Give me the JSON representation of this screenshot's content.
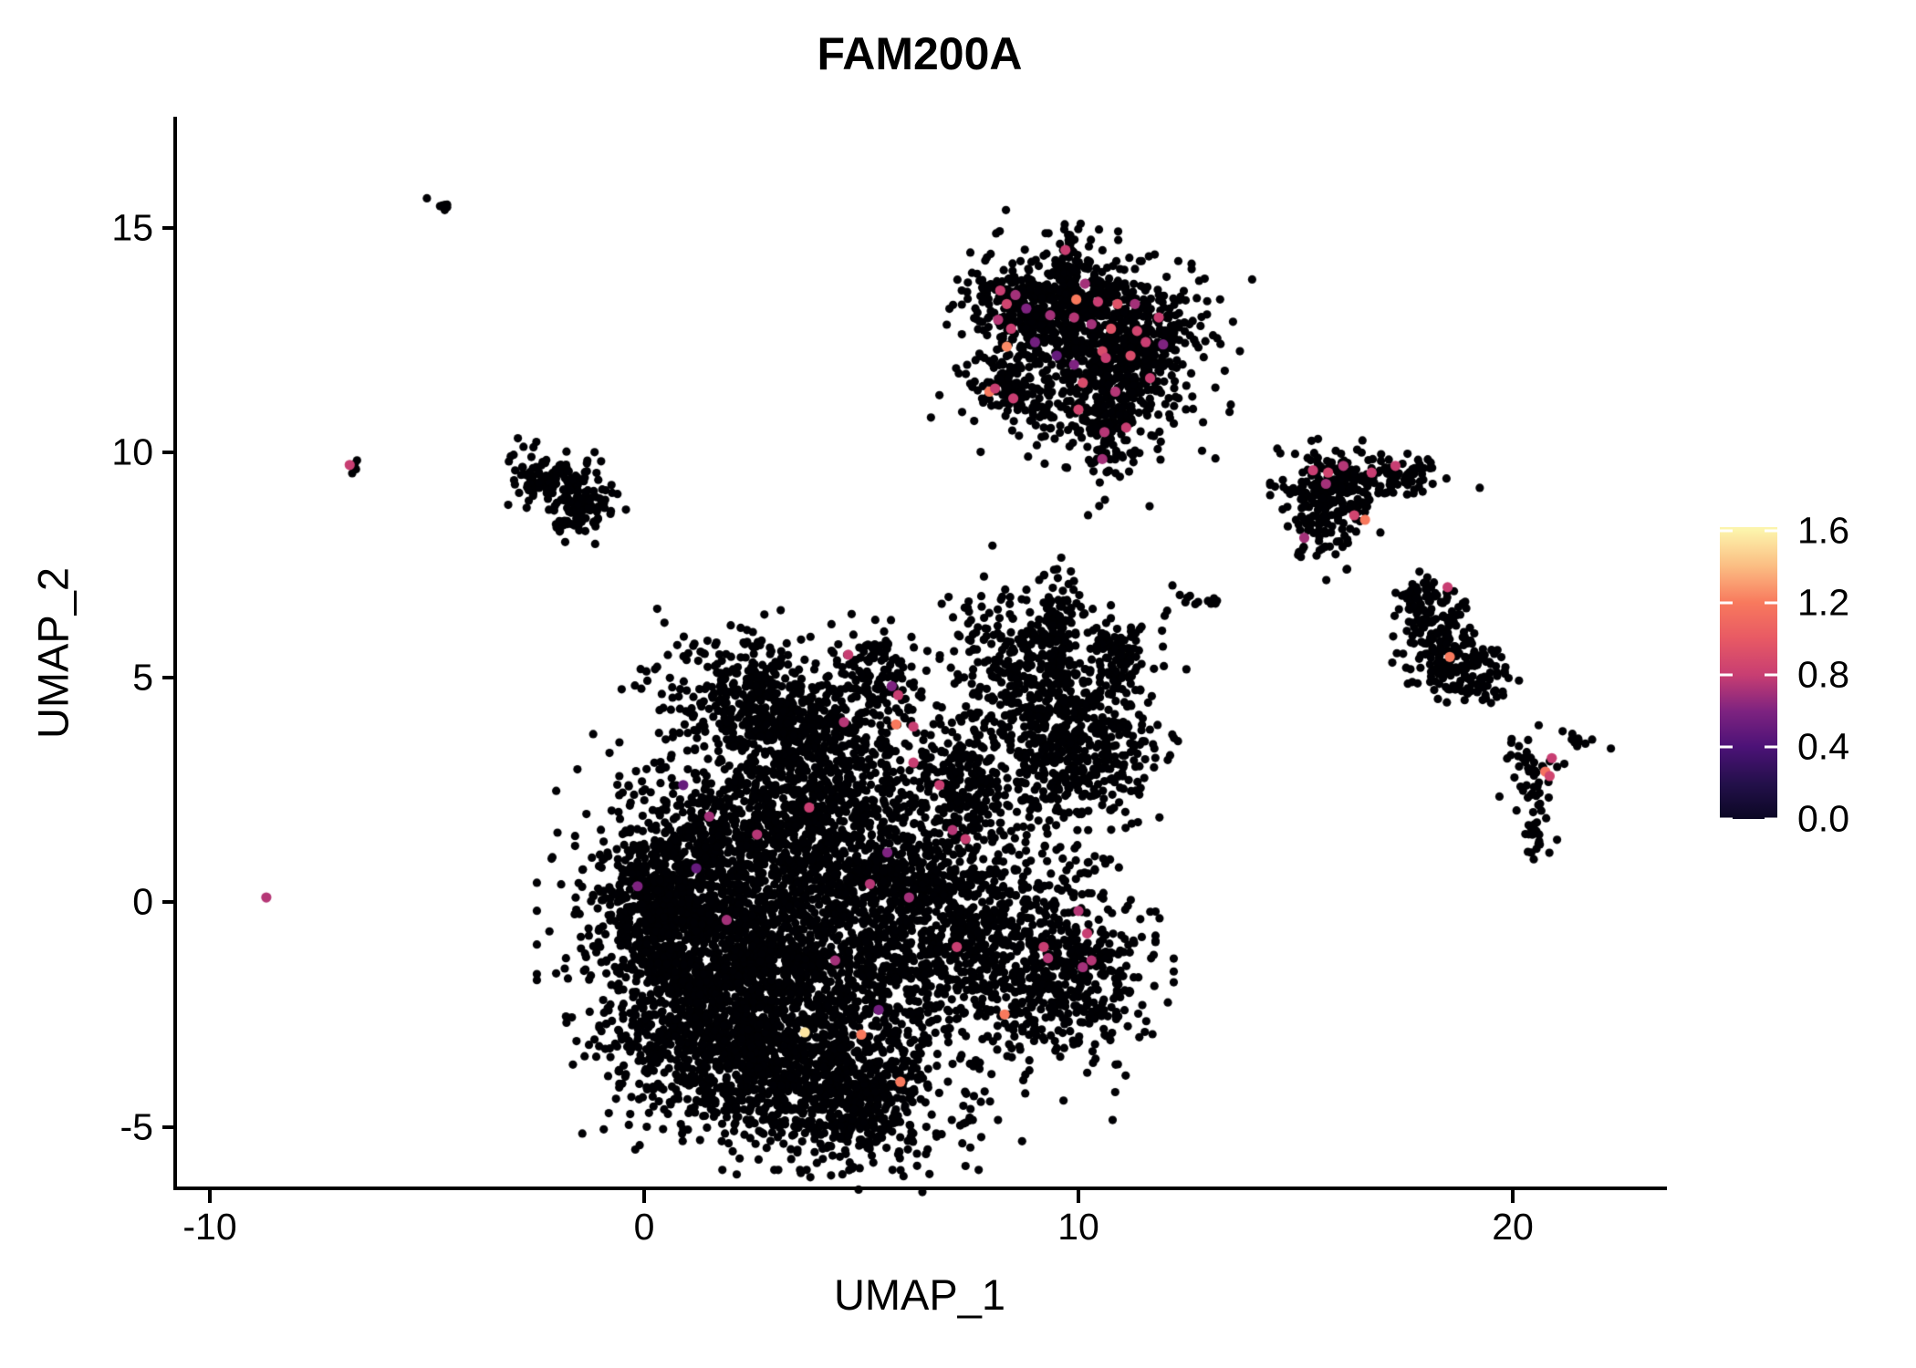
{
  "title": "FAM200A",
  "axes": {
    "x": {
      "label": "UMAP_1",
      "tick_values": [
        -10,
        0,
        10,
        20
      ],
      "tick_labels": [
        "-10",
        "0",
        "10",
        "20"
      ],
      "range": [
        -10.8,
        23.5
      ]
    },
    "y": {
      "label": "UMAP_2",
      "tick_values": [
        -5,
        0,
        5,
        10,
        15
      ],
      "tick_labels": [
        "-5",
        "0",
        "5",
        "10",
        "15"
      ],
      "range": [
        -6.4,
        17.4
      ]
    }
  },
  "legend": {
    "tick_values": [
      1.6,
      1.2,
      0.8,
      0.4,
      0.0
    ],
    "tick_labels": [
      "1.6",
      "1.2",
      "0.8",
      "0.4",
      "0.0"
    ],
    "vmax": 1.62,
    "gradient_stops": [
      [
        0.0,
        "#0B0724"
      ],
      [
        0.12,
        "#23104A"
      ],
      [
        0.247,
        "#4C1277"
      ],
      [
        0.37,
        "#7E2380"
      ],
      [
        0.494,
        "#C83E72"
      ],
      [
        0.62,
        "#E85A64"
      ],
      [
        0.741,
        "#F8795D"
      ],
      [
        0.87,
        "#FBBF84"
      ],
      [
        0.99,
        "#FCF4AC"
      ]
    ]
  },
  "chart_data": {
    "type": "scatter",
    "title": "FAM200A",
    "xlabel": "UMAP_1",
    "ylabel": "UMAP_2",
    "grid": false,
    "legend_position": "right",
    "background_point_color": "#000004",
    "point_radius_px": 4.6,
    "colored_point_radius_px": 5.6,
    "seed": 42,
    "clusters_note": "each cluster = [center_x, center_y, sigma_x, sigma_y, rotation_deg, n_points] in UMAP data coordinates; points have expression 0 (black)",
    "clusters": [
      [
        3.2,
        -1.1,
        2.1,
        1.8,
        0,
        2400
      ],
      [
        0.9,
        -1.1,
        1.0,
        1.5,
        0,
        650
      ],
      [
        0.3,
        -0.2,
        0.6,
        0.9,
        0,
        250
      ],
      [
        5.0,
        -4.4,
        1.0,
        0.75,
        -15,
        400
      ],
      [
        3.3,
        -3.9,
        1.2,
        0.8,
        0,
        350
      ],
      [
        2.0,
        -3.1,
        1.2,
        0.8,
        10,
        300
      ],
      [
        2.6,
        4.4,
        1.2,
        0.8,
        -15,
        450
      ],
      [
        3.9,
        3.3,
        1.2,
        0.9,
        0,
        420
      ],
      [
        5.3,
        4.9,
        0.5,
        0.6,
        0,
        120
      ],
      [
        3.0,
        1.6,
        1.7,
        0.8,
        0,
        520
      ],
      [
        6.3,
        0.6,
        0.8,
        1.3,
        0,
        380
      ],
      [
        7.4,
        2.6,
        0.5,
        0.5,
        0,
        150
      ],
      [
        9.2,
        4.7,
        1.2,
        0.95,
        -30,
        520
      ],
      [
        9.9,
        3.2,
        0.9,
        0.7,
        0,
        300
      ],
      [
        8.4,
        -0.8,
        1.25,
        1.5,
        0,
        650
      ],
      [
        9.9,
        -1.7,
        0.85,
        0.8,
        0,
        260
      ],
      [
        9.5,
        6.1,
        0.22,
        0.65,
        0,
        80
      ],
      [
        11.0,
        5.5,
        0.35,
        0.5,
        0,
        80
      ],
      [
        10.3,
        12.3,
        1.25,
        1.0,
        -10,
        780
      ],
      [
        8.6,
        13.3,
        0.55,
        0.42,
        -25,
        170
      ],
      [
        9.9,
        13.5,
        0.6,
        0.4,
        0,
        180
      ],
      [
        10.6,
        10.7,
        0.33,
        0.75,
        8,
        130
      ],
      [
        8.35,
        11.45,
        0.45,
        0.22,
        -35,
        60
      ],
      [
        9.75,
        14.45,
        0.1,
        0.32,
        10,
        22
      ],
      [
        11.45,
        12.5,
        0.5,
        0.65,
        0,
        180
      ],
      [
        -1.95,
        9.35,
        0.5,
        0.33,
        -20,
        110
      ],
      [
        -1.45,
        8.65,
        0.42,
        0.28,
        20,
        75
      ],
      [
        -2.55,
        9.35,
        0.22,
        0.16,
        0,
        18
      ],
      [
        15.9,
        9.2,
        0.55,
        0.48,
        0,
        190
      ],
      [
        17.2,
        9.4,
        0.75,
        0.22,
        8,
        85
      ],
      [
        15.6,
        8.4,
        0.4,
        0.45,
        30,
        55
      ],
      [
        15.1,
        7.8,
        0.1,
        0.1,
        0,
        4
      ],
      [
        17.9,
        6.75,
        0.3,
        0.28,
        0,
        55
      ],
      [
        18.3,
        6.0,
        0.4,
        0.5,
        -30,
        95
      ],
      [
        18.85,
        5.2,
        0.5,
        0.38,
        -15,
        130
      ],
      [
        19.3,
        4.6,
        0.12,
        0.25,
        15,
        8
      ],
      [
        20.45,
        2.85,
        0.28,
        0.4,
        0,
        42
      ],
      [
        20.5,
        1.95,
        0.1,
        0.4,
        0,
        14
      ],
      [
        20.55,
        1.35,
        0.2,
        0.16,
        0,
        12
      ],
      [
        21.5,
        3.6,
        0.3,
        0.08,
        -28,
        11
      ],
      [
        -4.7,
        15.45,
        0.16,
        0.07,
        -28,
        7
      ],
      [
        -6.75,
        9.7,
        0.12,
        0.08,
        -30,
        4
      ],
      [
        12.65,
        6.8,
        0.28,
        0.08,
        -12,
        12
      ],
      [
        12.0,
        6.4,
        0.05,
        0.04,
        0,
        2
      ]
    ],
    "colored_points_note": "cells with non-zero FAM200A expression: [umap_1, umap_2, expression]",
    "colored_points": [
      [
        9.7,
        14.5,
        0.8
      ],
      [
        8.2,
        13.6,
        0.8
      ],
      [
        8.55,
        13.5,
        0.7
      ],
      [
        8.35,
        13.3,
        0.85
      ],
      [
        8.8,
        13.2,
        0.6
      ],
      [
        8.15,
        12.95,
        0.75
      ],
      [
        8.45,
        12.75,
        0.8
      ],
      [
        9.95,
        13.4,
        1.2
      ],
      [
        9.35,
        13.05,
        0.7
      ],
      [
        9.9,
        13.0,
        0.75
      ],
      [
        10.15,
        13.75,
        0.7
      ],
      [
        10.45,
        13.35,
        0.8
      ],
      [
        10.9,
        13.3,
        0.95
      ],
      [
        11.3,
        13.3,
        0.7
      ],
      [
        11.85,
        13.0,
        0.8
      ],
      [
        10.3,
        12.85,
        0.7
      ],
      [
        10.75,
        12.75,
        0.95
      ],
      [
        11.35,
        12.7,
        0.85
      ],
      [
        11.55,
        12.45,
        0.8
      ],
      [
        11.2,
        12.15,
        0.9
      ],
      [
        10.55,
        12.25,
        0.9
      ],
      [
        10.63,
        12.1,
        0.8
      ],
      [
        11.95,
        12.4,
        0.6
      ],
      [
        11.65,
        11.65,
        0.8
      ],
      [
        10.85,
        11.35,
        0.75
      ],
      [
        10.1,
        11.55,
        0.9
      ],
      [
        9.5,
        12.15,
        0.5
      ],
      [
        9.0,
        12.45,
        0.55
      ],
      [
        8.35,
        12.35,
        1.25
      ],
      [
        7.95,
        11.35,
        1.2
      ],
      [
        8.08,
        11.42,
        0.8
      ],
      [
        8.5,
        11.2,
        0.8
      ],
      [
        9.9,
        11.95,
        0.6
      ],
      [
        10.0,
        10.95,
        0.85
      ],
      [
        11.1,
        10.55,
        0.8
      ],
      [
        10.6,
        10.45,
        0.75
      ],
      [
        10.55,
        9.85,
        0.7
      ],
      [
        4.7,
        5.5,
        0.8
      ],
      [
        4.6,
        4.0,
        0.75
      ],
      [
        3.8,
        2.1,
        0.8
      ],
      [
        5.7,
        4.8,
        0.6
      ],
      [
        5.85,
        4.6,
        0.8
      ],
      [
        6.2,
        3.9,
        0.8
      ],
      [
        5.8,
        3.95,
        1.2
      ],
      [
        6.2,
        3.1,
        0.8
      ],
      [
        6.8,
        2.6,
        0.8
      ],
      [
        0.9,
        2.6,
        0.5
      ],
      [
        1.5,
        1.9,
        0.7
      ],
      [
        2.6,
        1.5,
        0.75
      ],
      [
        1.2,
        0.75,
        0.5
      ],
      [
        -0.15,
        0.35,
        0.6
      ],
      [
        1.9,
        -0.4,
        0.7
      ],
      [
        7.1,
        1.6,
        0.75
      ],
      [
        7.4,
        1.4,
        0.8
      ],
      [
        5.6,
        1.1,
        0.6
      ],
      [
        6.1,
        0.1,
        0.7
      ],
      [
        7.2,
        -1.0,
        0.8
      ],
      [
        10.0,
        -0.2,
        0.75
      ],
      [
        10.2,
        -0.7,
        0.8
      ],
      [
        10.3,
        -1.3,
        0.75
      ],
      [
        10.1,
        -1.45,
        0.7
      ],
      [
        9.2,
        -1.0,
        0.8
      ],
      [
        9.3,
        -1.25,
        0.75
      ],
      [
        5.4,
        -2.4,
        0.55
      ],
      [
        8.3,
        -2.5,
        1.2
      ],
      [
        5.9,
        -4.0,
        1.2
      ],
      [
        3.7,
        -2.9,
        1.55
      ],
      [
        5.0,
        -2.95,
        1.2
      ],
      [
        4.4,
        -1.3,
        0.7
      ],
      [
        5.2,
        0.4,
        0.75
      ],
      [
        15.4,
        9.6,
        0.8
      ],
      [
        15.75,
        9.55,
        0.85
      ],
      [
        16.1,
        9.7,
        0.75
      ],
      [
        15.7,
        9.3,
        0.7
      ],
      [
        16.75,
        9.55,
        0.8
      ],
      [
        17.3,
        9.7,
        0.8
      ],
      [
        16.35,
        8.6,
        0.85
      ],
      [
        16.6,
        8.5,
        1.2
      ],
      [
        15.2,
        8.1,
        0.7
      ],
      [
        18.5,
        7.0,
        0.8
      ],
      [
        18.55,
        5.45,
        1.2
      ],
      [
        20.9,
        3.2,
        0.8
      ],
      [
        20.75,
        2.9,
        1.15
      ],
      [
        20.85,
        2.8,
        0.85
      ],
      [
        -8.7,
        0.1,
        0.75
      ],
      [
        -6.78,
        9.72,
        0.8
      ]
    ]
  }
}
